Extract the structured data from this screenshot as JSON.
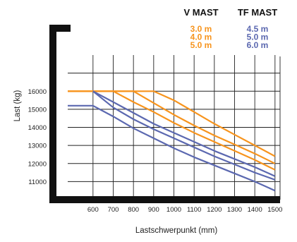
{
  "chart_data": {
    "type": "line",
    "xlabel": "Lastschwerpunkt (mm)",
    "ylabel": "Last (kg)",
    "x_ticks": [
      600,
      700,
      800,
      900,
      1000,
      1100,
      1200,
      1300,
      1400,
      1500
    ],
    "y_ticks": [
      11000,
      12000,
      13000,
      14000,
      15000,
      16000
    ],
    "xlim": [
      475,
      1525
    ],
    "ylim": [
      10000,
      18000
    ],
    "grid": true,
    "legend": {
      "placement": "top-right",
      "groups": [
        {
          "header": "V MAST",
          "color": "#f7941d",
          "items": [
            "3.0 m",
            "4.0 m",
            "5.0 m"
          ]
        },
        {
          "header": "TF MAST",
          "color": "#5b68b0",
          "items": [
            "4.5 m",
            "5.0 m",
            "6.0 m"
          ]
        }
      ]
    },
    "series": [
      {
        "group": "V MAST",
        "color": "#f7941d",
        "points": [
          [
            475,
            16000
          ],
          [
            900,
            16000
          ],
          [
            1000,
            15500
          ],
          [
            1100,
            14850
          ],
          [
            1200,
            14200
          ],
          [
            1300,
            13600
          ],
          [
            1400,
            13000
          ],
          [
            1500,
            12400
          ]
        ]
      },
      {
        "group": "V MAST",
        "color": "#f7941d",
        "points": [
          [
            475,
            16000
          ],
          [
            800,
            16000
          ],
          [
            900,
            15350
          ],
          [
            1000,
            14700
          ],
          [
            1100,
            14100
          ],
          [
            1200,
            13550
          ],
          [
            1300,
            13050
          ],
          [
            1400,
            12550
          ],
          [
            1500,
            12000
          ]
        ]
      },
      {
        "group": "V MAST",
        "color": "#f7941d",
        "points": [
          [
            475,
            16000
          ],
          [
            700,
            16000
          ],
          [
            800,
            15400
          ],
          [
            900,
            14850
          ],
          [
            1000,
            14250
          ],
          [
            1100,
            13700
          ],
          [
            1200,
            13200
          ],
          [
            1300,
            12700
          ],
          [
            1400,
            12200
          ],
          [
            1500,
            11650
          ]
        ]
      },
      {
        "group": "TF MAST",
        "color": "#5b68b0",
        "points": [
          [
            600,
            16000
          ],
          [
            700,
            15400
          ],
          [
            800,
            14800
          ],
          [
            900,
            14200
          ],
          [
            1000,
            13700
          ],
          [
            1100,
            13200
          ],
          [
            1200,
            12700
          ],
          [
            1300,
            12250
          ],
          [
            1400,
            11800
          ],
          [
            1500,
            11300
          ]
        ]
      },
      {
        "group": "TF MAST",
        "color": "#5b68b0",
        "points": [
          [
            600,
            16000
          ],
          [
            700,
            15100
          ],
          [
            800,
            14450
          ],
          [
            900,
            13900
          ],
          [
            1000,
            13400
          ],
          [
            1100,
            12900
          ],
          [
            1200,
            12400
          ],
          [
            1300,
            11950
          ],
          [
            1400,
            11500
          ],
          [
            1500,
            11100
          ]
        ]
      },
      {
        "group": "TF MAST",
        "color": "#5b68b0",
        "points": [
          [
            475,
            15200
          ],
          [
            600,
            15200
          ],
          [
            700,
            14600
          ],
          [
            800,
            13950
          ],
          [
            900,
            13400
          ],
          [
            1000,
            12850
          ],
          [
            1100,
            12350
          ],
          [
            1200,
            11900
          ],
          [
            1300,
            11450
          ],
          [
            1400,
            11000
          ],
          [
            1500,
            10500
          ]
        ]
      }
    ]
  }
}
